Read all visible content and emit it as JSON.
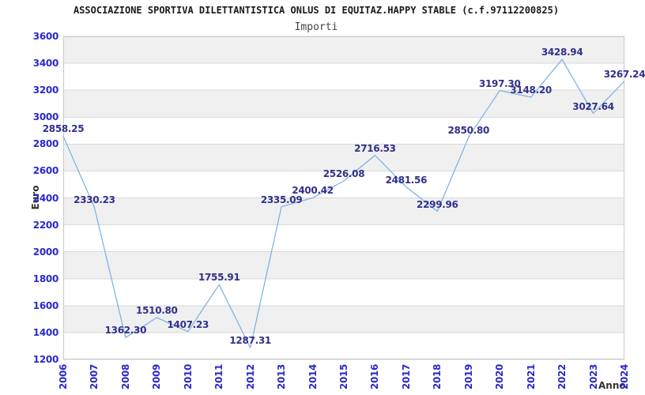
{
  "page": {
    "title": "ASSOCIAZIONE SPORTIVA DILETTANTISTICA ONLUS DI EQUITAZ.HAPPY STABLE (c.f.97112200825)",
    "subtitle": "Importi"
  },
  "chart_data": {
    "type": "line",
    "title": "ASSOCIAZIONE SPORTIVA DILETTANTISTICA ONLUS DI EQUITAZ.HAPPY STABLE (c.f.97112200825)",
    "subtitle": "Importi",
    "xlabel": "Anno",
    "ylabel": "Euro",
    "x": [
      2006,
      2007,
      2008,
      2009,
      2010,
      2011,
      2012,
      2013,
      2014,
      2015,
      2016,
      2017,
      2018,
      2019,
      2020,
      2021,
      2022,
      2023,
      2024
    ],
    "values": [
      2858.25,
      2330.23,
      1362.3,
      1510.8,
      1407.23,
      1755.91,
      1287.31,
      2335.09,
      2400.42,
      2526.08,
      2716.53,
      2481.56,
      2299.96,
      2850.8,
      3197.3,
      3148.2,
      3428.94,
      3027.64,
      3267.24
    ],
    "point_label_decimals": 2,
    "ylim": [
      1200,
      3600
    ],
    "ytick_step": 200,
    "grid": "horizontal",
    "bands": "alternating-gray",
    "legend": "none",
    "colors": {
      "line": "#7db1e6",
      "tick_label": "#2a2acc",
      "point_label": "#30308c",
      "band": "#f0f0f0",
      "gridline": "#d9d9d9",
      "plot_border": "#c9c9c9",
      "axis_title": "#333333",
      "title": "#1a1a1a",
      "subtitle": "#444444",
      "background": "#ffffff"
    }
  }
}
